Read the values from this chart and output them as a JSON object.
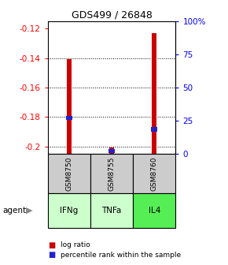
{
  "title": "GDS499 / 26848",
  "samples": [
    "GSM8750",
    "GSM8755",
    "GSM8760"
  ],
  "agents": [
    "IFNg",
    "TNFa",
    "IL4"
  ],
  "log_ratios": [
    -0.141,
    -0.201,
    -0.123
  ],
  "percentile_ranks": [
    0.27,
    0.02,
    0.185
  ],
  "ylim": [
    -0.205,
    -0.115
  ],
  "yticks_left": [
    -0.2,
    -0.18,
    -0.16,
    -0.14,
    -0.12
  ],
  "yticks_right": [
    0,
    25,
    50,
    75,
    100
  ],
  "bar_color": "#cc0000",
  "percentile_color": "#2222cc",
  "sample_bg_color": "#cccccc",
  "agent_colors": [
    "#ccffcc",
    "#ccffcc",
    "#55ee55"
  ],
  "legend_bar_color": "#cc0000",
  "legend_pct_color": "#2222cc"
}
